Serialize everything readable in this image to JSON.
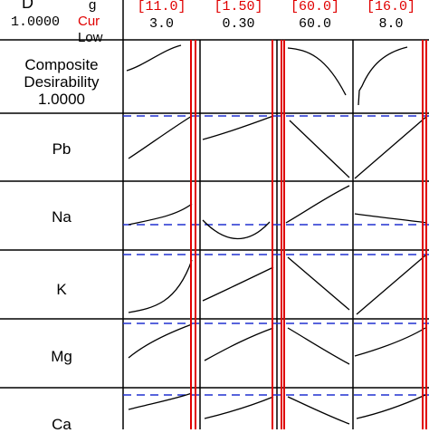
{
  "header": {
    "d_label": "D",
    "d_value": "1.0000",
    "hilo_labels": [
      "g",
      "Cur",
      "Low"
    ],
    "factors": [
      {
        "cur": "[11.0]",
        "low": "3.0"
      },
      {
        "cur": "[1.50]",
        "low": "0.30"
      },
      {
        "cur": "[60.0]",
        "low": "60.0"
      },
      {
        "cur": "[16.0]",
        "low": "8.0"
      }
    ]
  },
  "rows": [
    {
      "label_lines": [
        "Composite",
        "Desirability",
        "1.0000"
      ]
    },
    {
      "label_lines": [
        "Pb"
      ]
    },
    {
      "label_lines": [
        "Na"
      ]
    },
    {
      "label_lines": [
        "K"
      ]
    },
    {
      "label_lines": [
        "Mg"
      ]
    },
    {
      "label_lines": [
        "Ca"
      ]
    }
  ],
  "colors": {
    "current_line": "#e00000",
    "target_line": "#2030d0",
    "curve": "#000000"
  }
}
